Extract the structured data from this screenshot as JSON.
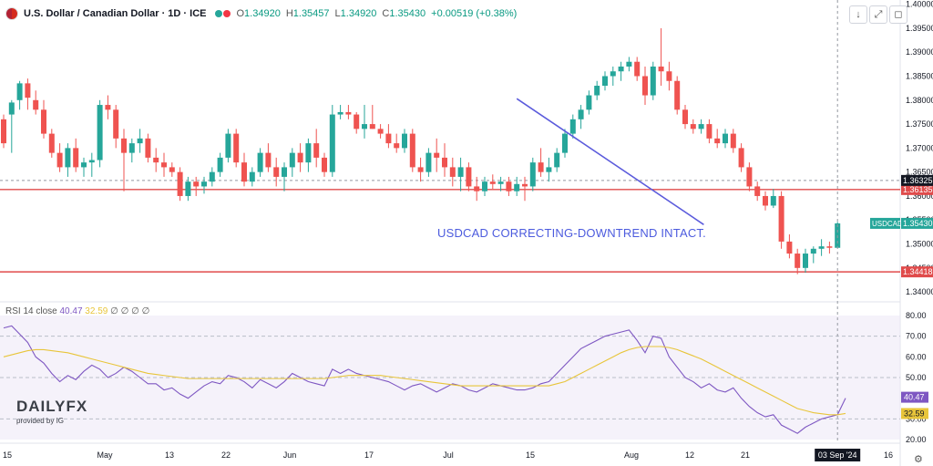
{
  "header": {
    "title": "U.S. Dollar / Canadian Dollar · 1D · ICE",
    "ohlc": {
      "o_label": "O",
      "o": "1.34920",
      "h_label": "H",
      "h": "1.35457",
      "l_label": "L",
      "l": "1.34920",
      "c_label": "C",
      "c": "1.35430",
      "change": "+0.00519 (+0.38%)"
    },
    "buttons": [
      "↓",
      "⤢",
      "◻"
    ]
  },
  "rsi_legend": {
    "name": "RSI 14 close",
    "rsi": "40.47",
    "ma": "32.59",
    "tail": "∅ ∅ ∅ ∅"
  },
  "annotation": "USDCAD CORRECTING-DOWNTREND INTACT.",
  "logo": {
    "brand": "DAILYFX",
    "sub": "provided by IG"
  },
  "colors": {
    "up": "#26a69a",
    "down": "#ef5350",
    "hline": "#e04b4b",
    "trend": "#5b5bdc",
    "rsi": "#7e57c2",
    "rsi_ma": "#e8c53a"
  },
  "chart_data": [
    {
      "type": "candlestick",
      "symbol": "USDCAD",
      "y_ticks": [
        "1.40000",
        "1.39500",
        "1.39000",
        "1.38500",
        "1.38000",
        "1.37500",
        "1.37000",
        "1.36500",
        "1.36000",
        "1.35500",
        "1.35000",
        "1.34500",
        "1.34000"
      ],
      "y_range": [
        1.3385,
        1.4005
      ],
      "x_ticks": [
        "15",
        "May",
        "13",
        "22",
        "Jun",
        "17",
        "Jul",
        "15",
        "Aug",
        "12",
        "21",
        "16"
      ],
      "cursor_date": "03 Sep '24",
      "levels": [
        {
          "value": 1.36135,
          "label": "1.36135",
          "color": "#e04b4b"
        },
        {
          "value": 1.34418,
          "label": "1.34418",
          "color": "#e04b4b"
        },
        {
          "value": 1.36325,
          "label": "1.36325",
          "color": "#131722"
        }
      ],
      "last_price": {
        "value": 1.3543,
        "name": "USDCAD",
        "label": "1.35430"
      },
      "trendline": {
        "from": [
          64,
          1.3803
        ],
        "to": [
          80.5,
          1.3548
        ]
      },
      "ohlc": [
        [
          1.376,
          1.377,
          1.37,
          1.371
        ],
        [
          1.377,
          1.38,
          1.369,
          1.3795
        ],
        [
          1.38,
          1.384,
          1.378,
          1.3835
        ],
        [
          1.3835,
          1.3845,
          1.378,
          1.3805
        ],
        [
          1.38,
          1.382,
          1.377,
          1.378
        ],
        [
          1.378,
          1.38,
          1.372,
          1.373
        ],
        [
          1.373,
          1.374,
          1.368,
          1.369
        ],
        [
          1.369,
          1.371,
          1.365,
          1.366
        ],
        [
          1.366,
          1.371,
          1.364,
          1.37
        ],
        [
          1.37,
          1.372,
          1.365,
          1.366
        ],
        [
          1.366,
          1.368,
          1.364,
          1.367
        ],
        [
          1.367,
          1.369,
          1.364,
          1.3675
        ],
        [
          1.3675,
          1.38,
          1.366,
          1.379
        ],
        [
          1.379,
          1.381,
          1.376,
          1.378
        ],
        [
          1.378,
          1.379,
          1.37,
          1.372
        ],
        [
          1.372,
          1.374,
          1.361,
          1.369
        ],
        [
          1.369,
          1.372,
          1.367,
          1.371
        ],
        [
          1.371,
          1.374,
          1.369,
          1.372
        ],
        [
          1.372,
          1.373,
          1.367,
          1.368
        ],
        [
          1.368,
          1.37,
          1.365,
          1.367
        ],
        [
          1.367,
          1.369,
          1.364,
          1.366
        ],
        [
          1.366,
          1.367,
          1.364,
          1.365
        ],
        [
          1.365,
          1.366,
          1.359,
          1.36
        ],
        [
          1.36,
          1.364,
          1.359,
          1.363
        ],
        [
          1.363,
          1.364,
          1.36,
          1.362
        ],
        [
          1.362,
          1.364,
          1.3605,
          1.363
        ],
        [
          1.363,
          1.366,
          1.362,
          1.365
        ],
        [
          1.365,
          1.369,
          1.364,
          1.368
        ],
        [
          1.368,
          1.374,
          1.367,
          1.373
        ],
        [
          1.373,
          1.374,
          1.366,
          1.367
        ],
        [
          1.367,
          1.369,
          1.362,
          1.363
        ],
        [
          1.363,
          1.366,
          1.362,
          1.365
        ],
        [
          1.365,
          1.37,
          1.364,
          1.369
        ],
        [
          1.369,
          1.371,
          1.365,
          1.366
        ],
        [
          1.366,
          1.368,
          1.362,
          1.364
        ],
        [
          1.364,
          1.367,
          1.361,
          1.366
        ],
        [
          1.366,
          1.37,
          1.364,
          1.369
        ],
        [
          1.369,
          1.371,
          1.365,
          1.367
        ],
        [
          1.367,
          1.372,
          1.365,
          1.371
        ],
        [
          1.371,
          1.374,
          1.366,
          1.368
        ],
        [
          1.368,
          1.369,
          1.364,
          1.365
        ],
        [
          1.365,
          1.379,
          1.364,
          1.377
        ],
        [
          1.377,
          1.379,
          1.376,
          1.3775
        ],
        [
          1.3775,
          1.379,
          1.376,
          1.377
        ],
        [
          1.377,
          1.3775,
          1.373,
          1.374
        ],
        [
          1.374,
          1.379,
          1.372,
          1.375
        ],
        [
          1.375,
          1.379,
          1.374,
          1.374
        ],
        [
          1.374,
          1.375,
          1.372,
          1.373
        ],
        [
          1.373,
          1.375,
          1.37,
          1.371
        ],
        [
          1.371,
          1.373,
          1.369,
          1.37
        ],
        [
          1.37,
          1.374,
          1.369,
          1.373
        ],
        [
          1.373,
          1.374,
          1.365,
          1.366
        ],
        [
          1.366,
          1.368,
          1.363,
          1.365
        ],
        [
          1.365,
          1.37,
          1.364,
          1.369
        ],
        [
          1.369,
          1.372,
          1.365,
          1.368
        ],
        [
          1.368,
          1.371,
          1.364,
          1.366
        ],
        [
          1.366,
          1.368,
          1.362,
          1.364
        ],
        [
          1.364,
          1.368,
          1.361,
          1.366
        ],
        [
          1.366,
          1.367,
          1.361,
          1.362
        ],
        [
          1.362,
          1.364,
          1.359,
          1.361
        ],
        [
          1.361,
          1.364,
          1.36,
          1.363
        ],
        [
          1.363,
          1.3645,
          1.3615,
          1.3625
        ],
        [
          1.3625,
          1.364,
          1.361,
          1.363
        ],
        [
          1.363,
          1.364,
          1.36,
          1.361
        ],
        [
          1.361,
          1.364,
          1.36,
          1.3625
        ],
        [
          1.3625,
          1.364,
          1.359,
          1.362
        ],
        [
          1.362,
          1.368,
          1.361,
          1.367
        ],
        [
          1.367,
          1.37,
          1.364,
          1.365
        ],
        [
          1.365,
          1.368,
          1.363,
          1.366
        ],
        [
          1.366,
          1.37,
          1.365,
          1.369
        ],
        [
          1.369,
          1.374,
          1.368,
          1.373
        ],
        [
          1.373,
          1.377,
          1.372,
          1.376
        ],
        [
          1.376,
          1.379,
          1.374,
          1.378
        ],
        [
          1.378,
          1.382,
          1.377,
          1.381
        ],
        [
          1.381,
          1.384,
          1.38,
          1.383
        ],
        [
          1.383,
          1.386,
          1.382,
          1.385
        ],
        [
          1.385,
          1.387,
          1.383,
          1.386
        ],
        [
          1.386,
          1.388,
          1.384,
          1.387
        ],
        [
          1.387,
          1.389,
          1.386,
          1.388
        ],
        [
          1.388,
          1.389,
          1.384,
          1.385
        ],
        [
          1.385,
          1.387,
          1.379,
          1.381
        ],
        [
          1.381,
          1.388,
          1.38,
          1.387
        ],
        [
          1.387,
          1.395,
          1.383,
          1.386
        ],
        [
          1.386,
          1.388,
          1.382,
          1.384
        ],
        [
          1.384,
          1.385,
          1.377,
          1.378
        ],
        [
          1.378,
          1.379,
          1.374,
          1.375
        ],
        [
          1.375,
          1.376,
          1.373,
          1.374
        ],
        [
          1.374,
          1.376,
          1.373,
          1.375
        ],
        [
          1.375,
          1.376,
          1.371,
          1.372
        ],
        [
          1.372,
          1.374,
          1.37,
          1.371
        ],
        [
          1.371,
          1.374,
          1.37,
          1.373
        ],
        [
          1.373,
          1.374,
          1.369,
          1.37
        ],
        [
          1.37,
          1.371,
          1.365,
          1.366
        ],
        [
          1.366,
          1.367,
          1.361,
          1.362
        ],
        [
          1.362,
          1.363,
          1.359,
          1.36
        ],
        [
          1.36,
          1.361,
          1.357,
          1.358
        ],
        [
          1.358,
          1.3615,
          1.3575,
          1.36
        ],
        [
          1.36,
          1.361,
          1.349,
          1.3505
        ],
        [
          1.3505,
          1.352,
          1.347,
          1.348
        ],
        [
          1.348,
          1.349,
          1.3437,
          1.345
        ],
        [
          1.345,
          1.349,
          1.344,
          1.348
        ],
        [
          1.348,
          1.3495,
          1.346,
          1.349
        ],
        [
          1.349,
          1.351,
          1.3475,
          1.3495
        ],
        [
          1.3495,
          1.3505,
          1.348,
          1.3492
        ],
        [
          1.3492,
          1.3546,
          1.3492,
          1.3543
        ]
      ]
    },
    {
      "type": "line",
      "name": "RSI 14 close",
      "y_ticks": [
        "80.00",
        "70.00",
        "60.00",
        "50.00",
        "40.00",
        "30.00",
        "20.00"
      ],
      "y_range": [
        20,
        80
      ],
      "levels": [
        70,
        50,
        30
      ],
      "series": [
        {
          "name": "RSI",
          "color": "#7e57c2",
          "values": [
            74,
            75,
            71,
            67,
            60,
            57,
            52,
            48,
            51,
            49,
            53,
            56,
            54,
            50,
            52,
            55,
            53,
            50,
            47,
            47,
            44,
            45,
            42,
            40,
            43,
            46,
            48,
            47,
            51,
            50,
            48,
            45,
            49,
            47,
            45,
            48,
            52,
            50,
            48,
            47,
            46,
            54,
            52,
            54,
            52,
            51,
            50,
            49,
            48,
            46,
            44,
            46,
            47,
            45,
            43,
            45,
            47,
            46,
            44,
            43,
            45,
            47,
            46,
            45,
            44,
            44,
            45,
            47,
            48,
            52,
            56,
            60,
            64,
            66,
            68,
            70,
            71,
            72,
            73,
            68,
            62,
            70,
            69,
            60,
            55,
            50,
            48,
            45,
            47,
            44,
            43,
            45,
            40,
            36,
            33,
            31,
            32,
            27,
            25,
            23,
            26,
            28,
            30,
            31,
            32,
            40
          ]
        },
        {
          "name": "MA",
          "color": "#e8c53a",
          "values": [
            60,
            61,
            62,
            63,
            63.5,
            63.5,
            63,
            62.5,
            62,
            61,
            60,
            59,
            58,
            57,
            56,
            55,
            54,
            53,
            52,
            51.5,
            51,
            50.5,
            50,
            49.5,
            49.5,
            49.5,
            49.5,
            49.5,
            49.5,
            49.5,
            49.5,
            49.5,
            49.5,
            49.5,
            49.5,
            49.5,
            49.5,
            49.5,
            49.5,
            49.5,
            49.5,
            50,
            50.5,
            51,
            51,
            51,
            51,
            51,
            50.5,
            50,
            49.5,
            49,
            48.5,
            48,
            47.5,
            47,
            46.5,
            46,
            46,
            46,
            46,
            46,
            46,
            46,
            46,
            46,
            46,
            46,
            46,
            47,
            48,
            50,
            52,
            54,
            56,
            58,
            60,
            62,
            63.5,
            64.5,
            65,
            65,
            65,
            64.5,
            63.5,
            62,
            60.5,
            59,
            57,
            55,
            53,
            51,
            49,
            47,
            45,
            43,
            41,
            39,
            37,
            35,
            34,
            33,
            32.5,
            32,
            32,
            32.6
          ]
        }
      ],
      "last_labels": [
        {
          "value": "40.47",
          "color": "#7e57c2"
        },
        {
          "value": "32.59",
          "color": "#e8c53a"
        }
      ]
    }
  ]
}
